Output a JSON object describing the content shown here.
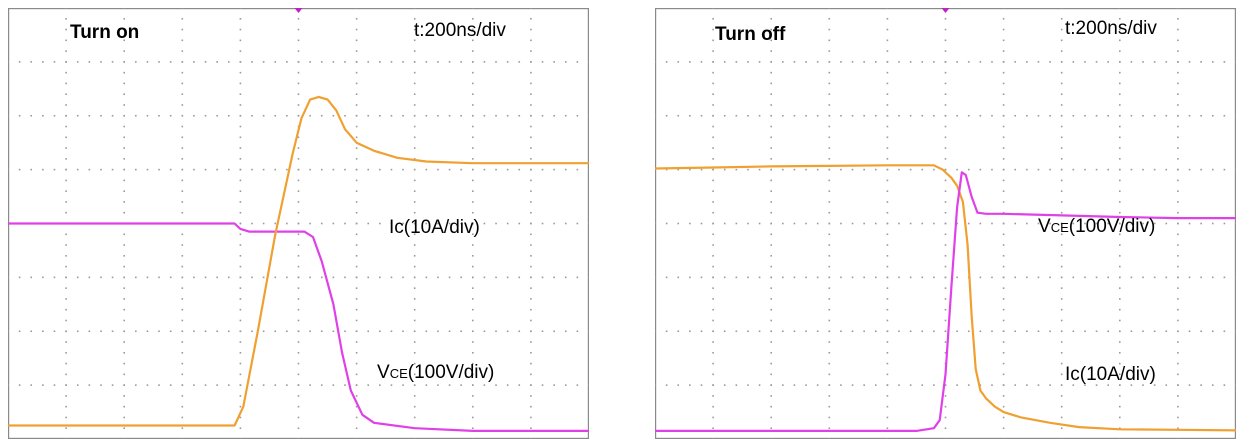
{
  "chart_data": [
    {
      "type": "line",
      "title": "Turn on",
      "timebase": "t:200ns/div",
      "grid": true,
      "grid_divisions": {
        "x": 10,
        "y": 8
      },
      "xlim": [
        0,
        10
      ],
      "ylim": [
        0,
        8
      ],
      "trigger_marker_color": "#c020c8",
      "series": [
        {
          "name": "Ic(10A/div)",
          "label_main": "Ic(10A/div)",
          "label_sub": "",
          "label_rest": "",
          "color": "#e040e8",
          "x": [
            0,
            1.6,
            3.9,
            4.0,
            4.15,
            4.3,
            4.8,
            5.1,
            5.25,
            5.4,
            5.6,
            5.75,
            5.9,
            6.1,
            6.3,
            7.0,
            8.0,
            9.0,
            10.0
          ],
          "y": [
            4.0,
            4.0,
            4.0,
            3.9,
            3.85,
            3.85,
            3.85,
            3.85,
            3.75,
            3.3,
            2.5,
            1.6,
            0.9,
            0.45,
            0.3,
            0.2,
            0.15,
            0.15,
            0.15
          ]
        },
        {
          "name": "VCE(100V/div)",
          "label_main": "V",
          "label_sub": "CE",
          "label_rest": "(100V/div)",
          "color": "#f0a030",
          "x": [
            0,
            1.0,
            2.0,
            3.9,
            4.05,
            4.3,
            4.6,
            4.9,
            5.05,
            5.2,
            5.35,
            5.5,
            5.65,
            5.8,
            6.0,
            6.3,
            6.7,
            7.2,
            8.0,
            9.0,
            10.0
          ],
          "y": [
            0.25,
            0.25,
            0.25,
            0.25,
            0.6,
            2.0,
            3.8,
            5.3,
            5.95,
            6.3,
            6.35,
            6.3,
            6.1,
            5.75,
            5.5,
            5.35,
            5.22,
            5.15,
            5.12,
            5.12,
            5.12
          ]
        }
      ],
      "xlabel": "",
      "ylabel": ""
    },
    {
      "type": "line",
      "title": "Turn off",
      "timebase": "t:200ns/div",
      "grid": true,
      "grid_divisions": {
        "x": 10,
        "y": 8
      },
      "xlim": [
        0,
        10
      ],
      "ylim": [
        0,
        8
      ],
      "trigger_marker_color": "#c020c8",
      "series": [
        {
          "name": "VCE(100V/div)",
          "label_main": "V",
          "label_sub": "CE",
          "label_rest": "(100V/div)",
          "color": "#f0a030",
          "x": [
            0,
            1.0,
            2.0,
            3.0,
            4.0,
            4.8,
            4.95,
            5.1,
            5.2,
            5.3,
            5.38,
            5.45,
            5.52,
            5.6,
            5.7,
            5.85,
            6.0,
            6.3,
            6.8,
            7.3,
            8.0,
            9.0,
            10.0
          ],
          "y": [
            5.02,
            5.04,
            5.06,
            5.07,
            5.08,
            5.08,
            5.0,
            4.85,
            4.7,
            4.4,
            3.6,
            2.3,
            1.3,
            0.9,
            0.75,
            0.6,
            0.5,
            0.4,
            0.3,
            0.22,
            0.18,
            0.17,
            0.16
          ]
        },
        {
          "name": "Ic(10A/div)",
          "label_main": "Ic(10A/div)",
          "label_sub": "",
          "label_rest": "",
          "color": "#e040e8",
          "x": [
            0,
            1.0,
            2.0,
            3.0,
            4.5,
            4.8,
            4.9,
            5.0,
            5.1,
            5.2,
            5.28,
            5.35,
            5.45,
            5.55,
            5.7,
            6.0,
            7.0,
            8.0,
            9.0,
            10.0
          ],
          "y": [
            0.15,
            0.15,
            0.15,
            0.15,
            0.15,
            0.2,
            0.35,
            1.2,
            2.8,
            4.3,
            4.95,
            4.9,
            4.5,
            4.2,
            4.18,
            4.18,
            4.15,
            4.12,
            4.1,
            4.1
          ]
        }
      ],
      "xlabel": "",
      "ylabel": ""
    }
  ]
}
